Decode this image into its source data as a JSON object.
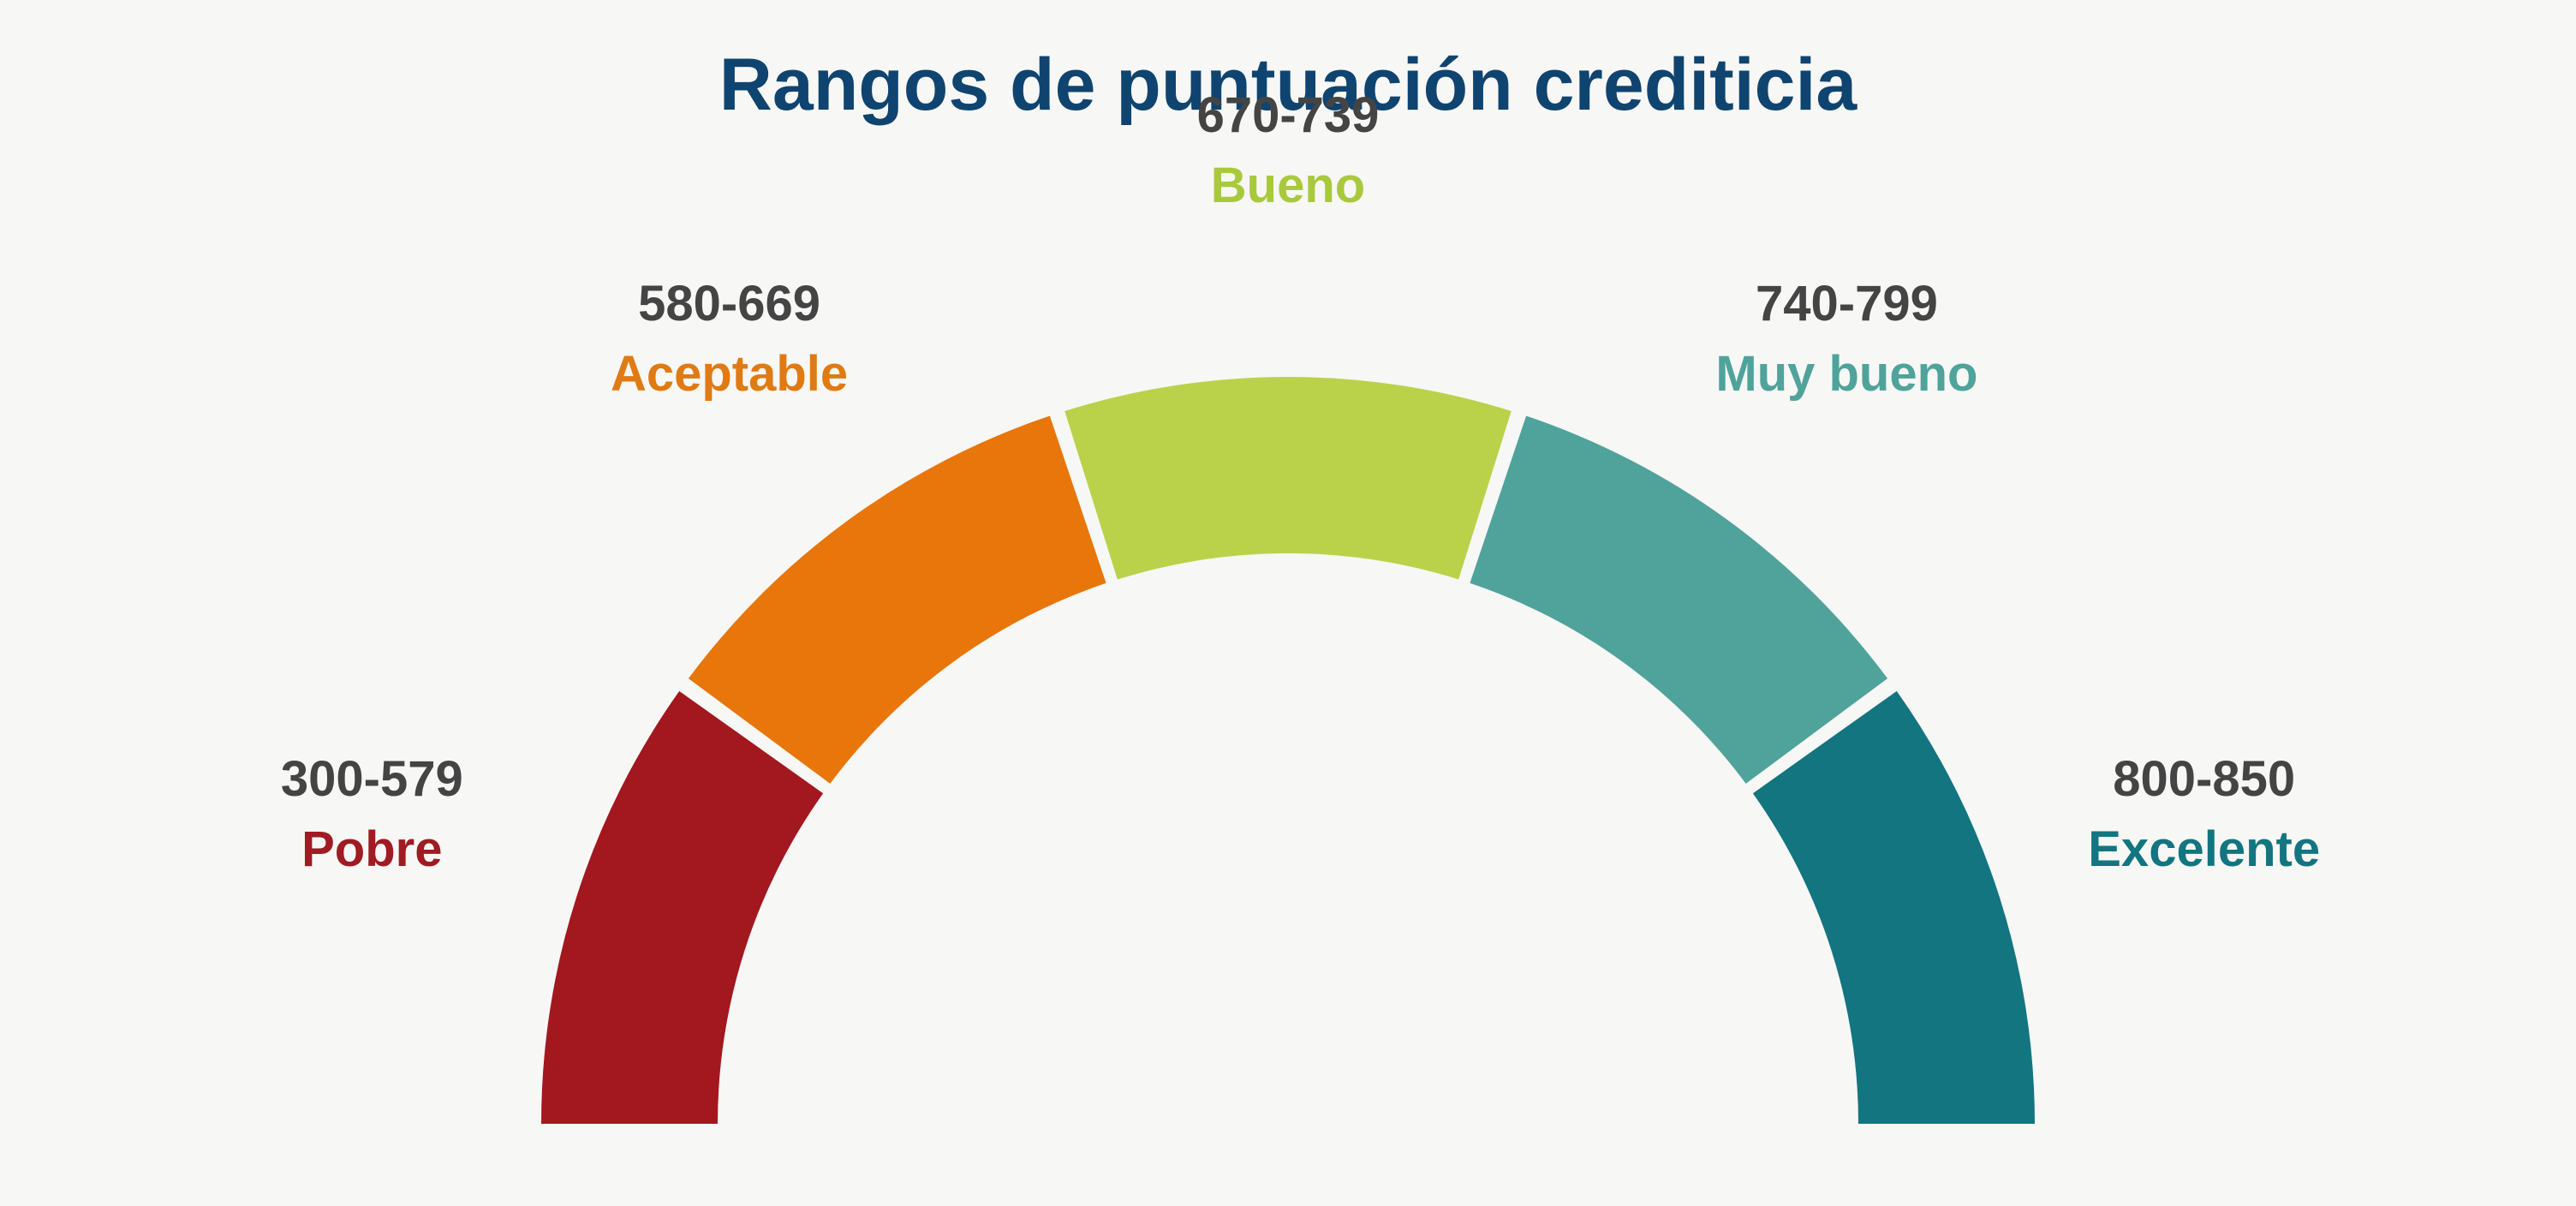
{
  "chart_data": {
    "type": "gauge",
    "title": "Rangos de puntuación crediticia",
    "title_color": "#0f4470",
    "scale_min": 300,
    "scale_max": 850,
    "segments": [
      {
        "range": "300-579",
        "name": "Pobre",
        "min": 300,
        "max": 579,
        "color": "#a3171f",
        "label_color": "#a01b22"
      },
      {
        "range": "580-669",
        "name": "Aceptable",
        "min": 580,
        "max": 669,
        "color": "#e8760a",
        "label_color": "#e07a12"
      },
      {
        "range": "670-739",
        "name": "Bueno",
        "min": 670,
        "max": 739,
        "color": "#b9d24a",
        "label_color": "#a9c93c"
      },
      {
        "range": "740-799",
        "name": "Muy bueno",
        "min": 740,
        "max": 799,
        "color": "#4fa39b",
        "label_color": "#4fa39b"
      },
      {
        "range": "800-850",
        "name": "Excelente",
        "min": 800,
        "max": 850,
        "color": "#127580",
        "label_color": "#127580"
      }
    ]
  }
}
